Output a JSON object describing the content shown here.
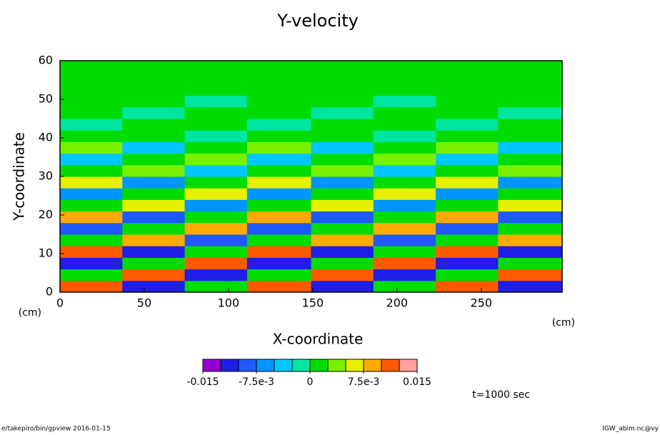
{
  "chart_data": {
    "type": "contour",
    "title": "Y-velocity",
    "x_label": "X-coordinate",
    "y_label": "Y-coordinate",
    "x_unit": "(cm)",
    "y_unit": "(cm)",
    "time_label": "t=1000 sec",
    "footer_left": "e/takepiro/bin/gpview   2016-01-15",
    "footer_right": "IGW_abim.nc@vy",
    "xlim": [
      0,
      298
    ],
    "ylim": [
      0,
      60
    ],
    "xticks": [
      0,
      50,
      100,
      150,
      200,
      250
    ],
    "yticks": [
      0,
      10,
      20,
      30,
      40,
      50,
      60
    ],
    "x_edges": [
      0,
      37,
      74,
      111,
      149,
      186,
      223,
      260,
      298
    ],
    "y_edges": [
      0,
      3,
      6,
      9,
      12,
      15,
      18,
      21,
      24,
      27,
      30,
      33,
      36,
      39,
      42,
      45,
      48,
      51,
      54,
      57,
      60
    ],
    "z": [
      [
        0.011,
        -0.011,
        0,
        0.011,
        -0.011,
        0,
        0.011,
        -0.011
      ],
      [
        0,
        0.011,
        -0.011,
        0,
        0.011,
        -0.011,
        0,
        0.011
      ],
      [
        -0.011,
        0,
        0.011,
        -0.011,
        0,
        0.011,
        -0.011,
        0
      ],
      [
        0.011,
        -0.011,
        0,
        0.011,
        -0.011,
        0,
        0.011,
        -0.011
      ],
      [
        0,
        0.009,
        -0.009,
        0,
        0.009,
        -0.009,
        0,
        0.009
      ],
      [
        -0.009,
        0,
        0.009,
        -0.009,
        0,
        0.009,
        -0.009,
        0
      ],
      [
        0.009,
        -0.009,
        0,
        0.009,
        -0.009,
        0,
        0.009,
        -0.009
      ],
      [
        0,
        0.007,
        -0.007,
        0,
        0.007,
        -0.007,
        0,
        0.007
      ],
      [
        -0.007,
        0,
        0.007,
        -0.007,
        0,
        0.007,
        -0.007,
        0
      ],
      [
        0.007,
        -0.007,
        0,
        0.007,
        -0.007,
        0,
        0.007,
        -0.007
      ],
      [
        0,
        0.004,
        -0.004,
        0,
        0.004,
        -0.004,
        0,
        0.004
      ],
      [
        -0.004,
        0,
        0.004,
        -0.004,
        0,
        0.004,
        -0.004,
        0
      ],
      [
        0.004,
        -0.004,
        0,
        0.004,
        -0.004,
        0,
        0.004,
        -0.004
      ],
      [
        0,
        0.0015,
        -0.0015,
        0,
        0.0015,
        -0.0015,
        0,
        0.0015
      ],
      [
        -0.0015,
        0,
        0.0015,
        -0.0015,
        0,
        0.0015,
        -0.0015,
        0
      ],
      [
        0.0015,
        -0.0015,
        0,
        0.0015,
        -0.0015,
        0,
        0.0015,
        -0.0015
      ],
      [
        0,
        0.0015,
        -0.0015,
        0,
        0.0015,
        -0.0015,
        0,
        0.0015
      ],
      [
        0,
        0,
        0,
        0,
        0,
        0,
        0,
        0
      ],
      [
        0,
        0,
        0,
        0,
        0,
        0,
        0,
        0
      ],
      [
        0,
        0,
        0,
        0,
        0,
        0,
        0,
        0
      ]
    ],
    "levels": [
      -0.015,
      -0.0125,
      -0.01,
      -0.0075,
      -0.005,
      -0.0025,
      0,
      0.0025,
      0.005,
      0.0075,
      0.01,
      0.0125,
      0.015
    ],
    "colors": [
      "#9600d2",
      "#1e1ee6",
      "#1e5aff",
      "#0096ff",
      "#00c8ff",
      "#00e6a0",
      "#00dc00",
      "#78f000",
      "#e6f000",
      "#ffaa00",
      "#ff5a00",
      "#ffa0a0"
    ],
    "colorbar_ticks": [
      -0.015,
      {
        "value": -0.0075,
        "label": "-7.5e-3"
      },
      0,
      {
        "value": 0.0075,
        "label": "7.5e-3"
      },
      0.015
    ]
  }
}
